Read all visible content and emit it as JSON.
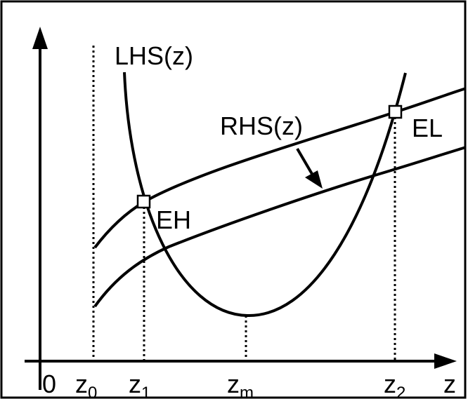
{
  "labels": {
    "lhs": "LHS(z)",
    "rhs": "RHS(z)",
    "eh": "EH",
    "el": "EL",
    "origin": "0",
    "z_axis": "z"
  },
  "ticks": {
    "z0": {
      "base": "z",
      "sub": "0"
    },
    "z1": {
      "base": "z",
      "sub": "1"
    },
    "zm": {
      "base": "z",
      "sub": "m"
    },
    "z2": {
      "base": "z",
      "sub": "2"
    }
  },
  "colors": {
    "ink": "#000000",
    "background": "#ffffff",
    "marker_fill": "#ffffff"
  }
}
